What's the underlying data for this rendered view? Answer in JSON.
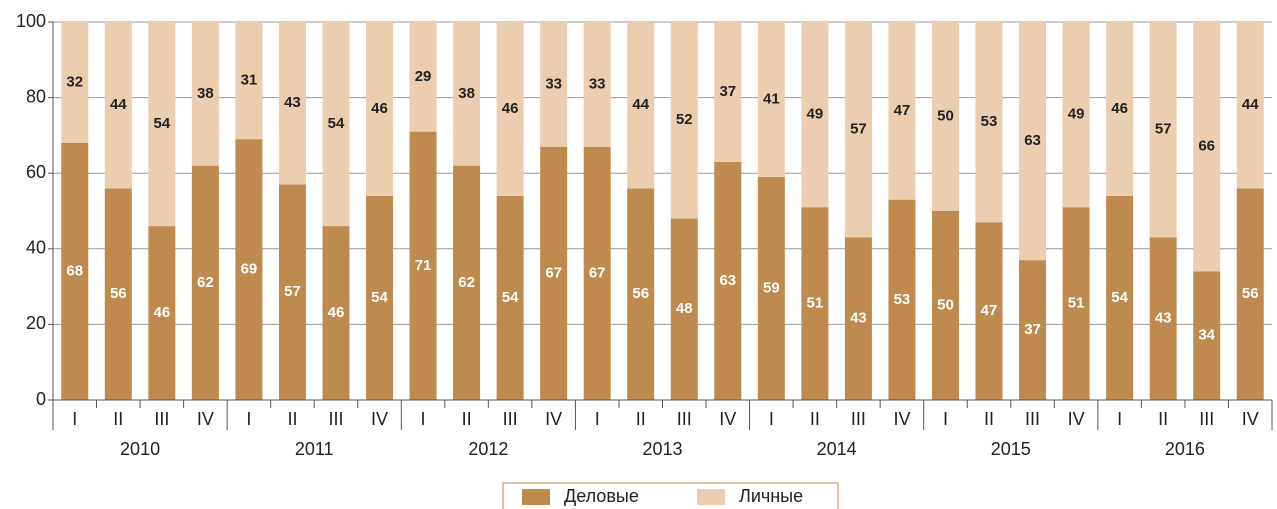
{
  "chart_data": {
    "type": "stacked-bar",
    "categories": [
      "I",
      "II",
      "III",
      "IV",
      "I",
      "II",
      "III",
      "IV",
      "I",
      "II",
      "III",
      "IV",
      "I",
      "II",
      "III",
      "IV",
      "I",
      "II",
      "III",
      "IV",
      "I",
      "II",
      "III",
      "IV",
      "I",
      "II",
      "III",
      "IV"
    ],
    "groups": [
      "2010",
      "2011",
      "2012",
      "2013",
      "2014",
      "2015",
      "2016"
    ],
    "series": [
      {
        "name": "Деловые",
        "color": "#bf8a4e",
        "values": [
          68,
          56,
          46,
          62,
          69,
          57,
          46,
          54,
          71,
          62,
          54,
          67,
          67,
          56,
          48,
          63,
          59,
          51,
          43,
          53,
          50,
          47,
          37,
          51,
          54,
          43,
          34,
          56
        ]
      },
      {
        "name": "Личные",
        "color": "#ebcdb0",
        "values": [
          32,
          44,
          54,
          38,
          31,
          43,
          54,
          46,
          29,
          38,
          46,
          33,
          33,
          44,
          52,
          37,
          41,
          49,
          57,
          47,
          50,
          53,
          63,
          49,
          46,
          57,
          66,
          44
        ]
      }
    ],
    "ylim": [
      0,
      100
    ],
    "yticks": [
      0,
      20,
      40,
      60,
      80,
      100
    ],
    "grid": true,
    "legend": "bottom"
  }
}
